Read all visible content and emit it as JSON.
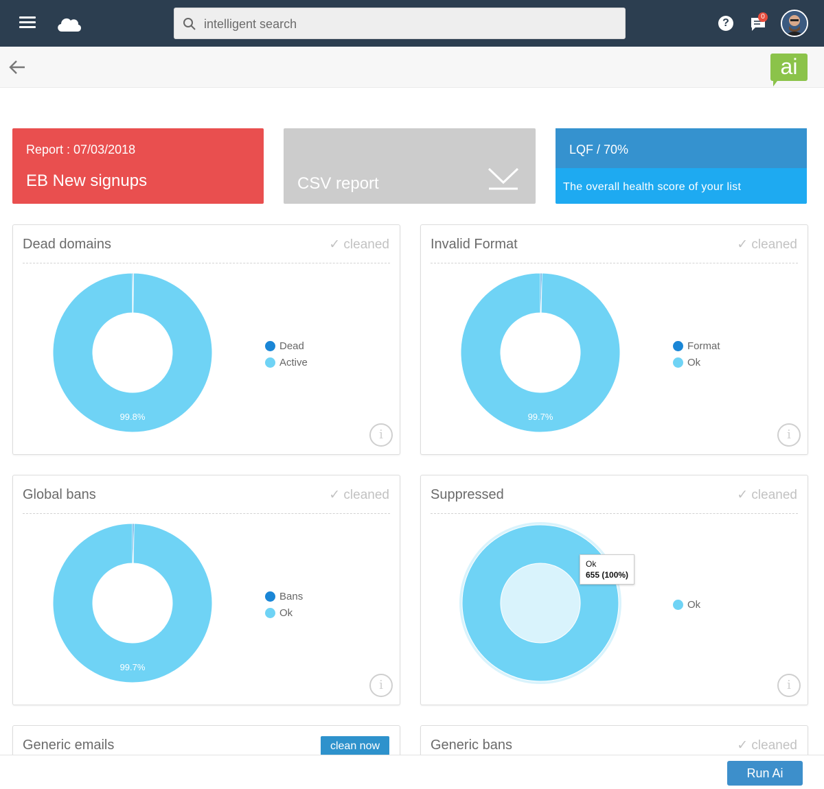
{
  "topbar": {
    "search_placeholder": "intelligent search",
    "help_label": "?",
    "notification_count": "0"
  },
  "subbar": {
    "logo_text": "ai"
  },
  "cards": {
    "report_date": "Report : 07/03/2018",
    "report_name": "EB New signups",
    "csv_label": "CSV report",
    "lqf_title": "LQF / 70%",
    "lqf_desc": "The overall health score of your list"
  },
  "panels": [
    {
      "title": "Dead domains",
      "status": "✓ cleaned",
      "center_label": "99.8%",
      "legend": [
        "Dead",
        "Active"
      ]
    },
    {
      "title": "Invalid Format",
      "status": "✓ cleaned",
      "center_label": "99.7%",
      "legend": [
        "Format",
        "Ok"
      ]
    },
    {
      "title": "Global bans",
      "status": "✓ cleaned",
      "center_label": "99.7%",
      "legend": [
        "Bans",
        "Ok"
      ]
    },
    {
      "title": "Suppressed",
      "status": "✓ cleaned",
      "center_label": "",
      "legend": [
        "Ok"
      ],
      "tooltip": {
        "name": "Ok",
        "value": "655 (100%)"
      }
    },
    {
      "title": "Generic emails",
      "action": "clean now"
    },
    {
      "title": "Generic bans",
      "status": "✓ cleaned"
    }
  ],
  "chart_data": [
    {
      "type": "pie",
      "title": "Dead domains",
      "categories": [
        "Dead",
        "Active"
      ],
      "values": [
        0.2,
        99.8
      ]
    },
    {
      "type": "pie",
      "title": "Invalid Format",
      "categories": [
        "Format",
        "Ok"
      ],
      "values": [
        0.3,
        99.7
      ]
    },
    {
      "type": "pie",
      "title": "Global bans",
      "categories": [
        "Bans",
        "Ok"
      ],
      "values": [
        0.3,
        99.7
      ]
    },
    {
      "type": "pie",
      "title": "Suppressed",
      "categories": [
        "Ok"
      ],
      "values": [
        655
      ]
    }
  ],
  "colors": {
    "dark_series": "#1a86d6",
    "light_series": "#6fd3f5",
    "report": "#e94f4f",
    "lqf": "#1eaaf1"
  },
  "footer": {
    "run_label": "Run Ai"
  }
}
